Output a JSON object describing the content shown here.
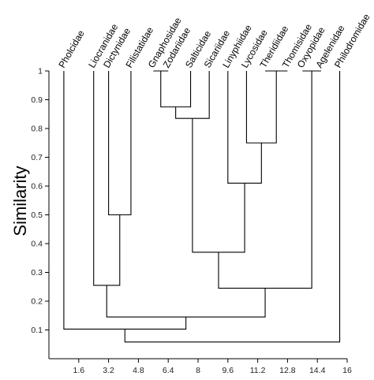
{
  "chart_data": {
    "type": "dendrogram",
    "title": "",
    "ylabel": "Similarity",
    "xlabel": "",
    "ylim": [
      0,
      1
    ],
    "xlim": [
      0,
      16
    ],
    "y_ticks": [
      "0.1",
      "0.2",
      "0.3",
      "0.4",
      "0.5",
      "0.6",
      "0.7",
      "0.8",
      "0.9",
      "1"
    ],
    "x_ticks": [
      "1.6",
      "3.2",
      "4.8",
      "6.4",
      "8",
      "9.6",
      "11.2",
      "12.8",
      "14.4",
      "16"
    ],
    "leaves": [
      {
        "name": "Pholcidae",
        "x": 0.8
      },
      {
        "name": "Liocranidae",
        "x": 2.4
      },
      {
        "name": "Dictynidae",
        "x": 3.2
      },
      {
        "name": "Filistatidae",
        "x": 4.4
      },
      {
        "name": "Gnaphosidae",
        "x": 5.6
      },
      {
        "name": "Zodariidae",
        "x": 6.4
      },
      {
        "name": "Salticidae",
        "x": 7.6
      },
      {
        "name": "Sicariidae",
        "x": 8.6
      },
      {
        "name": "Linyphiidae",
        "x": 9.6
      },
      {
        "name": "Lycosidae",
        "x": 10.6
      },
      {
        "name": "Theridiidae",
        "x": 11.6
      },
      {
        "name": "Thomisidae",
        "x": 12.8
      },
      {
        "name": "Oxyopidae",
        "x": 13.6
      },
      {
        "name": "Agelenidae",
        "x": 14.6
      },
      {
        "name": "Philodromidae",
        "x": 15.6
      }
    ],
    "merges": [
      {
        "members": [
          "Gnaphosidae",
          "Zodariidae"
        ],
        "similarity": 1.0
      },
      {
        "members": [
          "Theridiidae",
          "Thomisidae"
        ],
        "similarity": 1.0
      },
      {
        "members": [
          "Oxyopidae",
          "Agelenidae"
        ],
        "similarity": 1.0
      },
      {
        "members": [
          "Gnaphosidae+Zodariidae",
          "Salticidae"
        ],
        "similarity": 0.875
      },
      {
        "members": [
          "previous",
          "Sicariidae"
        ],
        "similarity": 0.835
      },
      {
        "members": [
          "Theridiidae+Thomisidae",
          "Lycosidae"
        ],
        "similarity": 0.75
      },
      {
        "members": [
          "previous",
          "Linyphiidae"
        ],
        "similarity": 0.61
      },
      {
        "members": [
          "Dictynidae",
          "Filistatidae"
        ],
        "similarity": 0.5
      },
      {
        "members": [
          "Gnaphosidae..Sicariidae",
          "Linyphiidae..Thomisidae"
        ],
        "similarity": 0.37
      },
      {
        "members": [
          "Liocranidae",
          "Dictynidae+Filistatidae"
        ],
        "similarity": 0.255
      },
      {
        "members": [
          "Gnaphosidae..Thomisidae",
          "Oxyopidae+Agelenidae"
        ],
        "similarity": 0.245
      },
      {
        "members": [
          "Liocranidae..Filistatidae",
          "Gnaphosidae..Agelenidae"
        ],
        "similarity": 0.145
      },
      {
        "members": [
          "Pholcidae",
          "Liocranidae..Agelenidae"
        ],
        "similarity": 0.103
      },
      {
        "members": [
          "all_previous",
          "Philodromidae"
        ],
        "similarity": 0.058
      }
    ]
  }
}
